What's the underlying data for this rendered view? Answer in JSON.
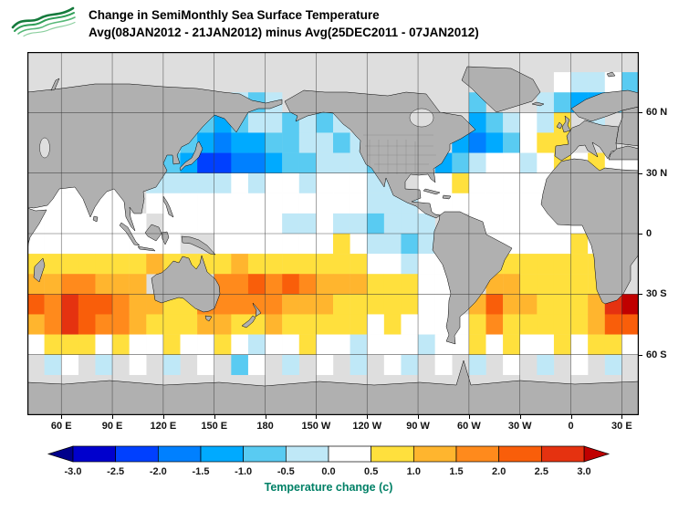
{
  "header": {
    "title_line1": "Change in SemiMonthly Sea Surface Temperature",
    "title_line2": "Avg(08JAN2012 - 21JAN2012) minus Avg(25DEC2011 - 07JAN2012)",
    "logo": "green-wave-logo"
  },
  "map": {
    "land_color": "#b0b0b0",
    "nodata_color": "#dedede",
    "grid_color": "#3a3a3a",
    "lon_ticks": [
      60,
      90,
      120,
      150,
      180,
      210,
      240,
      270,
      300,
      330,
      360,
      390
    ],
    "lon_labels": [
      "60 E",
      "90 E",
      "120 E",
      "150 E",
      "180",
      "150 W",
      "120 W",
      "90 W",
      "60 W",
      "30 W",
      "0",
      "30 E"
    ],
    "lat_ticks": [
      60,
      30,
      0,
      -30,
      -60
    ],
    "lat_labels": [
      "60 N",
      "30 N",
      "0",
      "30 S",
      "60 S"
    ]
  },
  "colorbar": {
    "levels": [
      "-3.0",
      "-2.5",
      "-2.0",
      "-1.5",
      "-1.0",
      "-0.5",
      "0.0",
      "0.5",
      "1.0",
      "1.5",
      "2.0",
      "2.5",
      "3.0"
    ],
    "caption": "Temperature change  (c)",
    "caption_color": "#008066"
  },
  "chart_data": {
    "type": "heatmap",
    "title": "Change in SemiMonthly Sea Surface Temperature",
    "subtitle": "Avg(08JAN2012 - 21JAN2012) minus Avg(25DEC2011 - 07JAN2012)",
    "units": "Temperature change (c)",
    "projection": "latlon",
    "lon_start": 40,
    "lon_end": 400,
    "lon_step": 10,
    "lat_start": 80,
    "lat_end": -80,
    "lat_step": -10,
    "levels": [
      -3,
      -2.5,
      -2,
      -1.5,
      -1,
      -0.5,
      0,
      0.5,
      1,
      1.5,
      2,
      2.5,
      3
    ],
    "palette": [
      "#00008B",
      "#0000CD",
      "#0040FF",
      "#0080FF",
      "#00AAFF",
      "#59CBF2",
      "#BFE8F7",
      "#FFFFFF",
      "#FFE03D",
      "#FFB52E",
      "#FF8A1C",
      "#F95E0A",
      "#E53210",
      "#C00000"
    ],
    "grid": [
      [
        null,
        null,
        null,
        null,
        null,
        null,
        null,
        null,
        null,
        null,
        null,
        null,
        null,
        null,
        null,
        null,
        null,
        null,
        null,
        null,
        null,
        null,
        null,
        null,
        null,
        null,
        null,
        null,
        null,
        null,
        null,
        0.2,
        -0.3,
        -0.3,
        0.2,
        -0.7
      ],
      [
        null,
        null,
        null,
        null,
        null,
        null,
        null,
        null,
        null,
        null,
        null,
        null,
        -0.3,
        -0.7,
        -0.3,
        null,
        null,
        null,
        null,
        null,
        null,
        null,
        null,
        null,
        null,
        null,
        -0.7,
        null,
        null,
        null,
        -0.3,
        -0.7,
        -1.2,
        -1.2,
        -0.7,
        0.2
      ],
      [
        null,
        null,
        null,
        null,
        null,
        null,
        null,
        null,
        null,
        null,
        -0.7,
        -1.2,
        -0.7,
        -0.3,
        -0.3,
        -0.7,
        -0.3,
        -0.7,
        -0.3,
        null,
        null,
        null,
        null,
        null,
        null,
        null,
        -1.2,
        -0.7,
        -0.3,
        0.2,
        -0.3,
        0.7,
        null,
        -0.3,
        null,
        null
      ],
      [
        null,
        null,
        null,
        null,
        null,
        null,
        null,
        null,
        null,
        -0.7,
        -1.2,
        -1.7,
        -1.2,
        -1.2,
        -0.7,
        -0.7,
        -0.3,
        -0.3,
        -0.7,
        -0.3,
        null,
        null,
        null,
        null,
        null,
        -1.2,
        -1.7,
        -1.2,
        -0.7,
        0.2,
        0.7,
        0.7,
        null,
        null,
        null,
        null
      ],
      [
        null,
        null,
        null,
        null,
        null,
        null,
        null,
        null,
        -0.7,
        -1.2,
        -2.2,
        -2.2,
        -1.7,
        -1.7,
        -1.2,
        -0.7,
        -0.7,
        -0.3,
        -0.3,
        -0.3,
        -0.7,
        null,
        null,
        null,
        -1.2,
        -0.7,
        -0.3,
        0.2,
        0.2,
        -0.3,
        0.2,
        0.7,
        0.3,
        0.7,
        0.3,
        0.2
      ],
      [
        null,
        0.2,
        0.2,
        null,
        0.2,
        0.3,
        null,
        -0.3,
        -0.3,
        -0.3,
        -0.3,
        -0.3,
        0.2,
        -0.3,
        0.2,
        0.2,
        -0.3,
        0.2,
        0.2,
        0.2,
        -0.3,
        -0.3,
        null,
        0.3,
        0.2,
        0.7,
        0.2,
        0.2,
        0.2,
        0.2,
        0.2,
        null,
        null,
        null,
        null,
        null
      ],
      [
        0.2,
        0.3,
        0.2,
        0.2,
        0.3,
        0.3,
        null,
        0.2,
        0.2,
        0.2,
        0.3,
        0.2,
        0.2,
        0.3,
        0.3,
        0.3,
        0.2,
        0.2,
        0.3,
        0.2,
        -0.3,
        -0.3,
        -0.3,
        0.3,
        0.3,
        0.3,
        0.3,
        0.2,
        0.2,
        0.3,
        0.3,
        null,
        null,
        null,
        null,
        null
      ],
      [
        0.3,
        0.2,
        0.2,
        0.2,
        0.3,
        0.2,
        0.2,
        null,
        0.2,
        0.3,
        0.2,
        0.3,
        0.2,
        0.2,
        0.2,
        -0.3,
        -0.3,
        0.2,
        -0.3,
        -0.3,
        -0.7,
        -0.3,
        -0.3,
        -0.3,
        null,
        null,
        0.3,
        0.3,
        0.3,
        0.2,
        0.3,
        0.3,
        0.3,
        null,
        null,
        null
      ],
      [
        0.3,
        0.3,
        0.3,
        0.2,
        0.3,
        0.3,
        0.3,
        0.3,
        0.2,
        null,
        null,
        0.3,
        0.3,
        0.3,
        0.3,
        0.3,
        0.2,
        0.3,
        0.7,
        0.3,
        -0.3,
        -0.3,
        -0.7,
        -0.3,
        -0.3,
        null,
        null,
        0.3,
        0.3,
        0.3,
        0.3,
        0.3,
        0.7,
        0.3,
        null,
        null
      ],
      [
        0.7,
        0.7,
        0.7,
        0.7,
        0.7,
        0.7,
        0.7,
        1.2,
        0.7,
        0.7,
        0.7,
        0.7,
        1.2,
        0.7,
        0.7,
        0.7,
        0.7,
        0.7,
        0.7,
        0.7,
        0.3,
        0.3,
        -0.3,
        0.2,
        0.3,
        null,
        null,
        0.7,
        0.7,
        0.7,
        0.7,
        0.7,
        0.7,
        0.7,
        null,
        null
      ],
      [
        1.2,
        1.2,
        1.7,
        1.7,
        1.2,
        1.2,
        1.2,
        null,
        null,
        null,
        null,
        1.7,
        1.7,
        2.2,
        1.7,
        2.2,
        1.7,
        1.2,
        1.2,
        1.2,
        0.7,
        0.7,
        0.7,
        0.3,
        0.3,
        null,
        null,
        1.2,
        1.2,
        0.7,
        0.7,
        0.7,
        0.7,
        0.7,
        null,
        null
      ],
      [
        2.2,
        1.7,
        2.7,
        2.2,
        2.2,
        1.7,
        1.2,
        1.2,
        0.7,
        0.7,
        1.7,
        1.7,
        1.7,
        1.7,
        1.7,
        1.2,
        1.2,
        1.2,
        0.7,
        0.7,
        0.7,
        0.7,
        0.7,
        0.3,
        0.3,
        null,
        1.2,
        2.2,
        1.2,
        1.2,
        0.7,
        0.7,
        0.7,
        1.2,
        2.7,
        3.2
      ],
      [
        1.2,
        1.7,
        2.7,
        2.2,
        1.7,
        1.7,
        1.2,
        0.7,
        0.7,
        0.7,
        1.2,
        1.2,
        0.7,
        0.7,
        1.2,
        0.7,
        0.7,
        0.7,
        0.7,
        0.7,
        0.3,
        0.7,
        0.3,
        0.3,
        0.3,
        0.3,
        0.7,
        1.7,
        0.7,
        0.7,
        0.7,
        0.7,
        0.7,
        1.2,
        2.2,
        2.2
      ],
      [
        0.3,
        0.7,
        0.7,
        0.7,
        0.3,
        0.7,
        0.3,
        0.3,
        0.7,
        0.3,
        0.3,
        0.7,
        0.3,
        -0.3,
        0.3,
        0.3,
        0.7,
        0.3,
        0.3,
        -0.3,
        0.3,
        0.3,
        0.3,
        -0.3,
        0.2,
        0.3,
        0.7,
        0.3,
        0.7,
        0.3,
        0.3,
        0.7,
        0.3,
        0.7,
        0.7,
        0.3
      ],
      [
        null,
        -0.3,
        0.2,
        null,
        -0.3,
        null,
        0.2,
        null,
        -0.3,
        null,
        0.2,
        null,
        -0.7,
        0.2,
        null,
        -0.3,
        null,
        0.2,
        null,
        -0.3,
        null,
        0.2,
        -0.3,
        null,
        0.2,
        null,
        -0.3,
        null,
        0.2,
        null,
        -0.3,
        null,
        0.2,
        null,
        -0.3,
        null
      ],
      [
        null,
        null,
        null,
        null,
        null,
        null,
        null,
        null,
        null,
        null,
        null,
        null,
        null,
        null,
        null,
        null,
        null,
        null,
        null,
        null,
        null,
        null,
        null,
        null,
        null,
        null,
        null,
        null,
        null,
        null,
        null,
        null,
        null,
        null,
        null,
        null
      ]
    ]
  }
}
